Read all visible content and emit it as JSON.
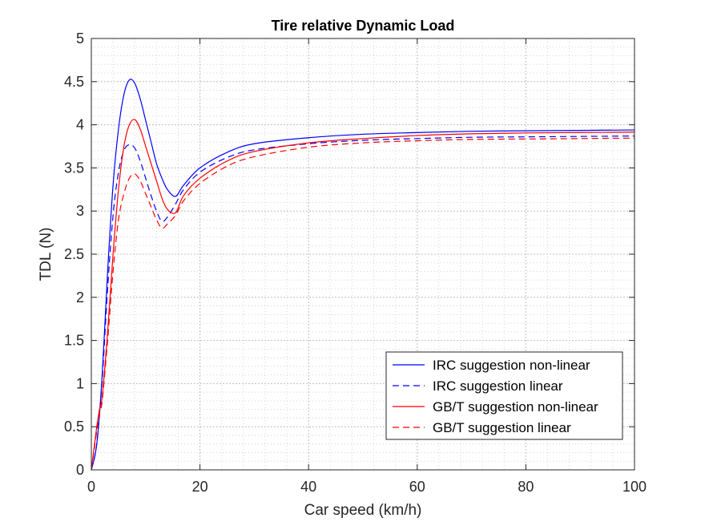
{
  "chart_data": {
    "type": "line",
    "title": "Tire relative Dynamic Load",
    "xlabel": "Car speed (km/h)",
    "ylabel": "TDL (N)",
    "xlim": [
      0,
      100
    ],
    "ylim": [
      0,
      5
    ],
    "xticks": [
      0,
      20,
      40,
      60,
      80,
      100
    ],
    "xtick_labels": [
      "0",
      "20",
      "40",
      "60",
      "80",
      "100"
    ],
    "yticks": [
      0,
      0.5,
      1,
      1.5,
      2,
      2.5,
      3,
      3.5,
      4,
      4.5,
      5
    ],
    "ytick_labels": [
      "0",
      "0.5",
      "1",
      "1.5",
      "2",
      "2.5",
      "3",
      "3.5",
      "4",
      "4.5",
      "5"
    ],
    "grid": "major and minor, dotted",
    "legend_position": "lower-right",
    "series": [
      {
        "name": "IRC suggestion non-linear",
        "color": "#0000ff",
        "dash": "solid",
        "x": [
          0,
          1,
          2,
          3,
          4,
          5,
          6,
          7,
          8,
          9,
          10,
          11,
          12,
          13,
          14,
          15.5,
          17,
          20,
          25,
          30,
          40,
          50,
          60,
          70,
          80,
          90,
          100
        ],
        "y": [
          0,
          0.3,
          1.1,
          2.3,
          3.3,
          3.95,
          4.35,
          4.52,
          4.48,
          4.3,
          4.05,
          3.8,
          3.55,
          3.38,
          3.25,
          3.17,
          3.3,
          3.5,
          3.68,
          3.78,
          3.85,
          3.89,
          3.91,
          3.925,
          3.93,
          3.935,
          3.94
        ]
      },
      {
        "name": "IRC suggestion linear",
        "color": "#0000ff",
        "dash": "dashed",
        "x": [
          0,
          1,
          2,
          3,
          4,
          5,
          6,
          7,
          8,
          9,
          10,
          11,
          12,
          13,
          14,
          15.5,
          17,
          20,
          25,
          30,
          40,
          50,
          60,
          70,
          80,
          90,
          100
        ],
        "y": [
          0,
          0.3,
          1.05,
          2.1,
          2.95,
          3.45,
          3.7,
          3.77,
          3.73,
          3.58,
          3.38,
          3.18,
          3.0,
          2.88,
          2.93,
          3.08,
          3.25,
          3.45,
          3.62,
          3.71,
          3.78,
          3.82,
          3.84,
          3.855,
          3.86,
          3.865,
          3.87
        ]
      },
      {
        "name": "GB/T suggestion non-linear",
        "color": "#ff0000",
        "dash": "solid",
        "x": [
          0,
          1,
          1.5,
          2,
          3,
          4,
          5,
          6,
          7,
          8,
          9,
          10,
          11,
          12,
          13,
          14,
          15.5,
          17,
          20,
          25,
          30,
          40,
          50,
          60,
          70,
          80,
          90,
          100
        ],
        "y": [
          0,
          0.5,
          0.7,
          0.85,
          1.6,
          2.5,
          3.25,
          3.75,
          4.0,
          4.06,
          3.95,
          3.75,
          3.55,
          3.35,
          3.15,
          3.02,
          2.98,
          3.18,
          3.38,
          3.58,
          3.69,
          3.79,
          3.84,
          3.875,
          3.895,
          3.905,
          3.91,
          3.915
        ]
      },
      {
        "name": "GB/T suggestion linear",
        "color": "#ff0000",
        "dash": "dashed",
        "x": [
          0,
          1,
          1.5,
          2,
          3,
          4,
          5,
          6,
          7,
          8,
          9,
          10,
          11,
          12,
          13,
          14,
          15.5,
          17,
          20,
          25,
          30,
          40,
          50,
          60,
          70,
          80,
          90,
          100
        ],
        "y": [
          0,
          0.45,
          0.65,
          0.8,
          1.5,
          2.3,
          2.9,
          3.2,
          3.38,
          3.43,
          3.35,
          3.2,
          3.05,
          2.9,
          2.8,
          2.85,
          2.95,
          3.12,
          3.32,
          3.52,
          3.63,
          3.74,
          3.79,
          3.815,
          3.83,
          3.835,
          3.84,
          3.845
        ]
      }
    ]
  }
}
